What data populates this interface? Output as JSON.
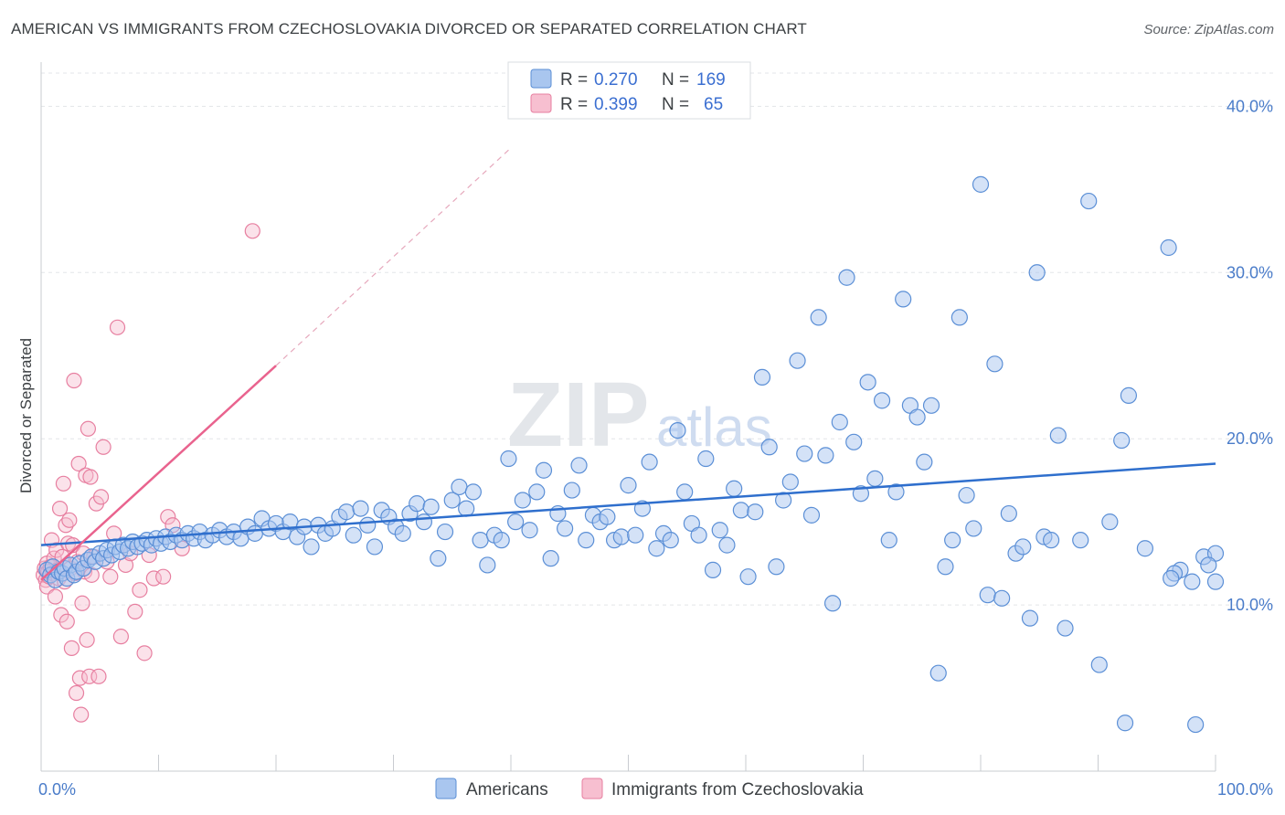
{
  "header": {
    "title": "AMERICAN VS IMMIGRANTS FROM CZECHOSLOVAKIA DIVORCED OR SEPARATED CORRELATION CHART",
    "source": "Source: ZipAtlas.com"
  },
  "watermark": {
    "zip": "ZIP",
    "atlas": "atlas"
  },
  "legend_top": {
    "rows": [
      {
        "r_label": "R =",
        "r_value": "0.270",
        "n_label": "N =",
        "n_value": "169"
      },
      {
        "r_label": "R =",
        "r_value": "0.399",
        "n_label": "N =",
        "n_value": "65"
      }
    ]
  },
  "chart_data": {
    "type": "scatter",
    "title": "AMERICAN VS IMMIGRANTS FROM CZECHOSLOVAKIA DIVORCED OR SEPARATED CORRELATION CHART",
    "xlabel": "",
    "ylabel": "Divorced or Separated",
    "xlim": [
      0,
      100
    ],
    "ylim": [
      0,
      42
    ],
    "x_tick_labels": [
      "0.0%",
      "100.0%"
    ],
    "y_ticks": [
      10,
      20,
      30,
      40
    ],
    "y_tick_labels": [
      "10.0%",
      "20.0%",
      "30.0%",
      "40.0%"
    ],
    "grid": true,
    "legend_placement": "top-center and bottom",
    "colors": {
      "americans_fill": "#a9c6ef",
      "americans_stroke": "#5b8fd6",
      "americans_line": "#2f6fcd",
      "czech_fill": "#f7bfd0",
      "czech_stroke": "#e77fa0",
      "czech_line": "#e9638e",
      "tick_text": "#4a7cc9"
    },
    "series": [
      {
        "name": "Americans",
        "r": 0.27,
        "n": 169,
        "trend": {
          "x0": 0,
          "y0": 13.6,
          "x1": 100,
          "y1": 18.5
        },
        "points": [
          [
            0.5,
            12.1
          ],
          [
            0.8,
            11.8
          ],
          [
            1,
            12.3
          ],
          [
            1.2,
            11.5
          ],
          [
            1.5,
            12.0
          ],
          [
            1.8,
            11.9
          ],
          [
            2,
            12.2
          ],
          [
            2.2,
            11.6
          ],
          [
            2.5,
            12.4
          ],
          [
            2.8,
            11.8
          ],
          [
            3,
            12.0
          ],
          [
            3.3,
            12.5
          ],
          [
            3.6,
            12.2
          ],
          [
            4,
            12.7
          ],
          [
            4.3,
            12.9
          ],
          [
            4.6,
            12.6
          ],
          [
            5,
            13.1
          ],
          [
            5.3,
            12.8
          ],
          [
            5.6,
            13.3
          ],
          [
            6,
            13.0
          ],
          [
            6.3,
            13.5
          ],
          [
            6.7,
            13.2
          ],
          [
            7,
            13.6
          ],
          [
            7.4,
            13.4
          ],
          [
            7.8,
            13.8
          ],
          [
            8.2,
            13.5
          ],
          [
            8.6,
            13.7
          ],
          [
            9,
            13.9
          ],
          [
            9.4,
            13.6
          ],
          [
            9.8,
            14.0
          ],
          [
            10.2,
            13.7
          ],
          [
            10.6,
            14.1
          ],
          [
            11,
            13.8
          ],
          [
            11.5,
            14.2
          ],
          [
            12,
            13.9
          ],
          [
            12.5,
            14.3
          ],
          [
            13,
            14.0
          ],
          [
            13.5,
            14.4
          ],
          [
            14,
            13.9
          ],
          [
            14.6,
            14.2
          ],
          [
            15.2,
            14.5
          ],
          [
            15.8,
            14.1
          ],
          [
            16.4,
            14.4
          ],
          [
            17,
            14.0
          ],
          [
            17.6,
            14.7
          ],
          [
            18.2,
            14.3
          ],
          [
            18.8,
            15.2
          ],
          [
            19.4,
            14.6
          ],
          [
            20,
            14.9
          ],
          [
            20.6,
            14.4
          ],
          [
            21.2,
            15.0
          ],
          [
            21.8,
            14.1
          ],
          [
            22.4,
            14.7
          ],
          [
            23,
            13.5
          ],
          [
            23.6,
            14.8
          ],
          [
            24.2,
            14.3
          ],
          [
            24.8,
            14.6
          ],
          [
            25.4,
            15.3
          ],
          [
            26,
            15.6
          ],
          [
            26.6,
            14.2
          ],
          [
            27.2,
            15.8
          ],
          [
            27.8,
            14.8
          ],
          [
            28.4,
            13.5
          ],
          [
            29,
            15.7
          ],
          [
            29.6,
            15.3
          ],
          [
            30.2,
            14.7
          ],
          [
            30.8,
            14.3
          ],
          [
            31.4,
            15.5
          ],
          [
            32,
            16.1
          ],
          [
            32.6,
            15.0
          ],
          [
            33.2,
            15.9
          ],
          [
            33.8,
            12.8
          ],
          [
            34.4,
            14.4
          ],
          [
            35,
            16.3
          ],
          [
            35.6,
            17.1
          ],
          [
            36.2,
            15.8
          ],
          [
            36.8,
            16.8
          ],
          [
            37.4,
            13.9
          ],
          [
            38,
            12.4
          ],
          [
            38.6,
            14.2
          ],
          [
            39.2,
            13.9
          ],
          [
            39.8,
            18.8
          ],
          [
            40.4,
            15.0
          ],
          [
            41,
            16.3
          ],
          [
            41.6,
            14.5
          ],
          [
            42.2,
            16.8
          ],
          [
            42.8,
            18.1
          ],
          [
            43.4,
            12.8
          ],
          [
            44,
            15.5
          ],
          [
            44.6,
            14.6
          ],
          [
            45.2,
            16.9
          ],
          [
            45.8,
            18.4
          ],
          [
            46.4,
            13.9
          ],
          [
            47,
            15.4
          ],
          [
            47.6,
            15.0
          ],
          [
            48.2,
            15.3
          ],
          [
            48.8,
            13.9
          ],
          [
            49.4,
            14.1
          ],
          [
            50,
            17.2
          ],
          [
            50.6,
            14.2
          ],
          [
            51.2,
            15.8
          ],
          [
            51.8,
            18.6
          ],
          [
            52.4,
            13.4
          ],
          [
            53,
            14.3
          ],
          [
            53.6,
            13.9
          ],
          [
            54.2,
            20.5
          ],
          [
            54.8,
            16.8
          ],
          [
            55.4,
            14.9
          ],
          [
            56,
            14.2
          ],
          [
            56.6,
            18.8
          ],
          [
            57.2,
            12.1
          ],
          [
            57.8,
            14.5
          ],
          [
            58.4,
            13.6
          ],
          [
            59,
            17.0
          ],
          [
            59.6,
            15.7
          ],
          [
            60.2,
            11.7
          ],
          [
            60.8,
            15.6
          ],
          [
            61.4,
            23.7
          ],
          [
            62,
            19.5
          ],
          [
            62.6,
            12.3
          ],
          [
            63.2,
            16.3
          ],
          [
            63.8,
            17.4
          ],
          [
            64.4,
            24.7
          ],
          [
            65,
            19.1
          ],
          [
            65.6,
            15.4
          ],
          [
            66.2,
            27.3
          ],
          [
            66.8,
            19.0
          ],
          [
            67.4,
            10.1
          ],
          [
            68,
            21.0
          ],
          [
            68.6,
            29.7
          ],
          [
            69.2,
            19.8
          ],
          [
            69.8,
            16.7
          ],
          [
            70.4,
            23.4
          ],
          [
            71,
            17.6
          ],
          [
            71.6,
            22.3
          ],
          [
            72.2,
            13.9
          ],
          [
            72.8,
            16.8
          ],
          [
            73.4,
            28.4
          ],
          [
            74,
            22.0
          ],
          [
            74.6,
            21.3
          ],
          [
            75.2,
            18.6
          ],
          [
            75.8,
            22.0
          ],
          [
            76.4,
            5.9
          ],
          [
            77,
            12.3
          ],
          [
            77.6,
            13.9
          ],
          [
            78.2,
            27.3
          ],
          [
            78.8,
            16.6
          ],
          [
            79.4,
            14.6
          ],
          [
            80,
            35.3
          ],
          [
            80.6,
            10.6
          ],
          [
            81.2,
            24.5
          ],
          [
            81.8,
            10.4
          ],
          [
            82.4,
            15.5
          ],
          [
            83,
            13.1
          ],
          [
            83.6,
            13.5
          ],
          [
            84.2,
            9.2
          ],
          [
            84.8,
            30.0
          ],
          [
            85.4,
            14.1
          ],
          [
            86,
            13.9
          ],
          [
            86.6,
            20.2
          ],
          [
            87.2,
            8.6
          ],
          [
            88.5,
            13.9
          ],
          [
            89.2,
            34.3
          ],
          [
            90.1,
            6.4
          ],
          [
            91,
            15.0
          ],
          [
            92,
            19.9
          ],
          [
            92.6,
            22.6
          ],
          [
            94,
            13.4
          ],
          [
            96,
            31.5
          ],
          [
            97,
            12.1
          ],
          [
            98,
            11.4
          ],
          [
            99,
            12.9
          ],
          [
            100,
            13.1
          ],
          [
            96.5,
            11.9
          ],
          [
            99.4,
            12.4
          ],
          [
            92.3,
            2.9
          ],
          [
            98.3,
            2.8
          ],
          [
            96.2,
            11.6
          ],
          [
            100,
            11.4
          ]
        ]
      },
      {
        "name": "Immigrants from Czechoslovakia",
        "r": 0.399,
        "n": 65,
        "trend": {
          "x0": 0,
          "y0": 11.5,
          "x1": 20,
          "y1": 24.4
        },
        "trend_dashed_to": {
          "x": 40,
          "y": 37.5
        },
        "points": [
          [
            0.2,
            11.8
          ],
          [
            0.3,
            12.2
          ],
          [
            0.4,
            11.5
          ],
          [
            0.5,
            12.5
          ],
          [
            0.5,
            11.1
          ],
          [
            0.6,
            12.0
          ],
          [
            0.7,
            11.7
          ],
          [
            0.8,
            12.3
          ],
          [
            0.9,
            13.9
          ],
          [
            1.0,
            11.9
          ],
          [
            1.1,
            12.8
          ],
          [
            1.2,
            10.5
          ],
          [
            1.3,
            13.3
          ],
          [
            1.4,
            12.1
          ],
          [
            1.5,
            11.6
          ],
          [
            1.6,
            15.8
          ],
          [
            1.7,
            9.4
          ],
          [
            1.8,
            12.9
          ],
          [
            1.9,
            17.3
          ],
          [
            2.0,
            11.4
          ],
          [
            2.1,
            14.8
          ],
          [
            2.2,
            9.0
          ],
          [
            2.3,
            13.7
          ],
          [
            2.4,
            15.1
          ],
          [
            2.5,
            12.2
          ],
          [
            2.6,
            7.4
          ],
          [
            2.7,
            13.6
          ],
          [
            2.8,
            23.5
          ],
          [
            2.9,
            11.9
          ],
          [
            3.0,
            4.7
          ],
          [
            3.1,
            12.6
          ],
          [
            3.2,
            18.5
          ],
          [
            3.3,
            5.6
          ],
          [
            3.4,
            3.4
          ],
          [
            3.5,
            10.1
          ],
          [
            3.6,
            13.1
          ],
          [
            3.7,
            12.0
          ],
          [
            3.8,
            17.8
          ],
          [
            3.9,
            7.9
          ],
          [
            4.0,
            20.6
          ],
          [
            4.1,
            5.7
          ],
          [
            4.2,
            17.7
          ],
          [
            4.3,
            11.8
          ],
          [
            4.5,
            12.9
          ],
          [
            4.7,
            16.1
          ],
          [
            4.9,
            5.7
          ],
          [
            5.1,
            16.5
          ],
          [
            5.3,
            19.5
          ],
          [
            5.6,
            12.6
          ],
          [
            5.9,
            11.7
          ],
          [
            6.2,
            14.3
          ],
          [
            6.5,
            26.7
          ],
          [
            6.8,
            8.1
          ],
          [
            7.2,
            12.4
          ],
          [
            7.6,
            13.1
          ],
          [
            8.0,
            9.6
          ],
          [
            8.4,
            10.9
          ],
          [
            8.8,
            7.1
          ],
          [
            9.2,
            13.0
          ],
          [
            9.6,
            11.6
          ],
          [
            10.4,
            11.7
          ],
          [
            10.8,
            15.3
          ],
          [
            11.2,
            14.8
          ],
          [
            12.0,
            13.4
          ],
          [
            18.0,
            32.5
          ]
        ]
      }
    ]
  },
  "legend_bottom": {
    "items": [
      "Americans",
      "Immigrants from Czechoslovakia"
    ]
  }
}
